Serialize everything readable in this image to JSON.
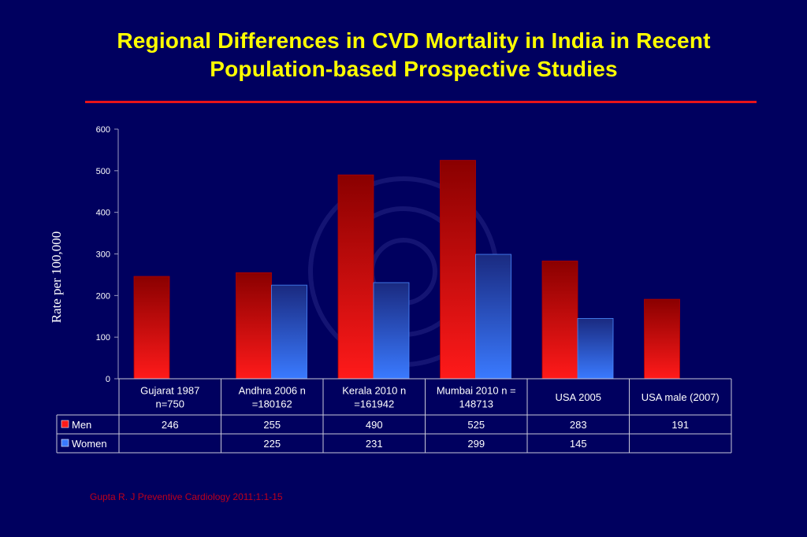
{
  "slide": {
    "title_line1": "Regional Differences in CVD Mortality in India in Recent",
    "title_line2": "Population-based Prospective Studies",
    "footnote": "Gupta R. J Preventive  Cardiology 2011;1:1-15"
  },
  "colors": {
    "background": "#00005f",
    "title": "#ffff00",
    "rule": "#e8141a",
    "men_top": "#8a0000",
    "men_bottom": "#ff1a1a",
    "women_top": "#1a2a80",
    "women_bottom": "#3a7aff"
  },
  "chart_data": {
    "type": "bar",
    "ylabel": "Rate per 100,000",
    "ylim": [
      0,
      600
    ],
    "yticks": [
      0,
      100,
      200,
      300,
      400,
      500,
      600
    ],
    "grid": false,
    "legend": "data-table",
    "categories": [
      [
        "Gujarat 1987",
        "n=750"
      ],
      [
        "Andhra 2006 n",
        "=180162"
      ],
      [
        "Kerala 2010 n",
        "=161942"
      ],
      [
        "Mumbai 2010 n =",
        "148713"
      ],
      [
        "USA 2005"
      ],
      [
        "USA male  (2007)"
      ]
    ],
    "series": [
      {
        "name": "Men",
        "values": [
          246,
          255,
          490,
          525,
          283,
          191
        ]
      },
      {
        "name": "Women",
        "values": [
          null,
          225,
          231,
          299,
          145,
          null
        ]
      }
    ]
  }
}
